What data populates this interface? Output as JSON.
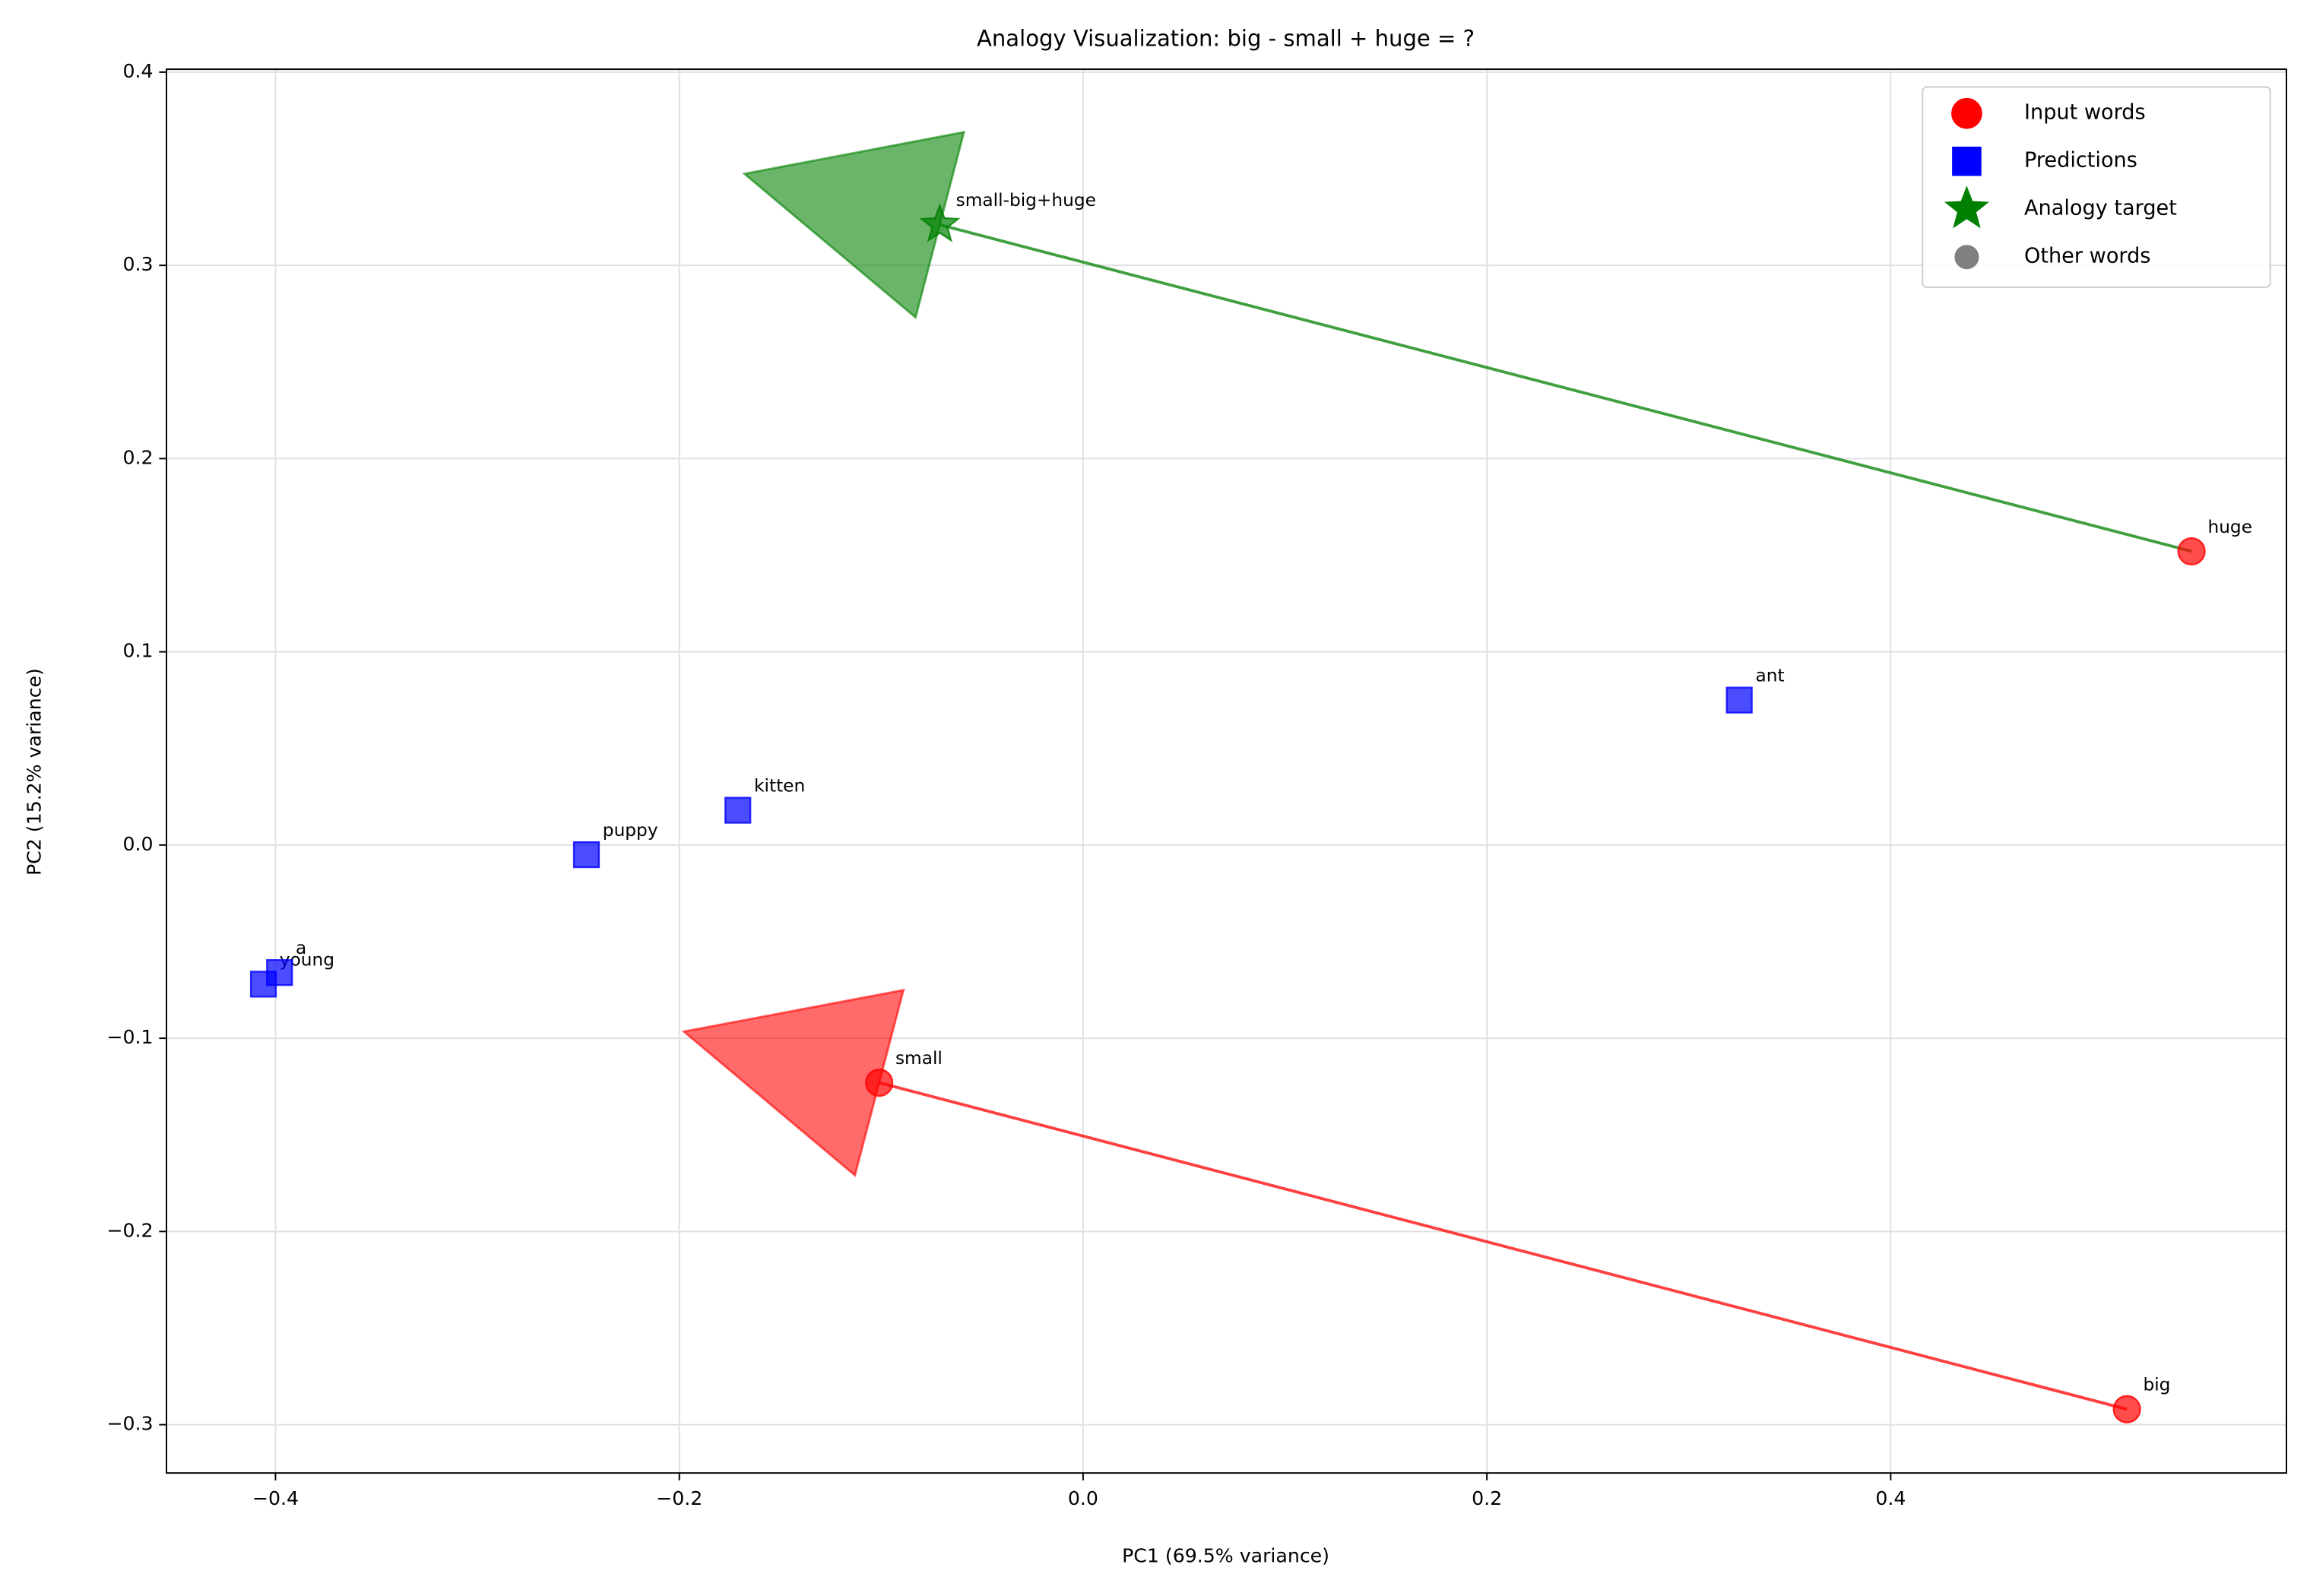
{
  "chart_data": {
    "type": "scatter",
    "title": "Analogy Visualization: big - small + huge = ?",
    "xlabel": "PC1 (69.5% variance)",
    "ylabel": "PC2 (15.2% variance)",
    "xlim": [
      -0.454,
      0.596
    ],
    "ylim": [
      -0.325,
      0.4015
    ],
    "xticks": [
      {
        "value": -0.4,
        "label": "−0.4"
      },
      {
        "value": -0.2,
        "label": "−0.2"
      },
      {
        "value": 0,
        "label": "0.0"
      },
      {
        "value": 0.2,
        "label": "0.2"
      },
      {
        "value": 0.4,
        "label": "0.4"
      }
    ],
    "yticks": [
      {
        "value": -0.3,
        "label": "−0.3"
      },
      {
        "value": -0.2,
        "label": "−0.2"
      },
      {
        "value": -0.1,
        "label": "−0.1"
      },
      {
        "value": 0,
        "label": "0.0"
      },
      {
        "value": 0.1,
        "label": "0.1"
      },
      {
        "value": 0.2,
        "label": "0.2"
      },
      {
        "value": 0.3,
        "label": "0.3"
      },
      {
        "value": 0.4,
        "label": "0.4"
      }
    ],
    "grid": true,
    "legend": "upper right",
    "series": [
      {
        "name": "Input words",
        "color": "red",
        "marker": "circle",
        "x": [
          -0.101,
          0.517,
          0.549
        ],
        "y": [
          -0.123,
          -0.292,
          0.152
        ],
        "labels": [
          "small",
          "big",
          "huge"
        ]
      },
      {
        "name": "Predictions",
        "color": "blue",
        "marker": "square",
        "x": [
          0.325,
          -0.171,
          -0.246,
          -0.406,
          -0.398
        ],
        "y": [
          0.075,
          0.018,
          -0.005,
          -0.072,
          -0.066
        ],
        "labels": [
          "ant",
          "kitten",
          "puppy",
          "young",
          "a"
        ]
      },
      {
        "name": "Analogy target",
        "color": "green",
        "marker": "star",
        "x": [
          -0.071
        ],
        "y": [
          0.321
        ],
        "labels": [
          "small-big+huge"
        ]
      },
      {
        "name": "Other words",
        "color": "gray",
        "marker": "circle",
        "x": [],
        "y": [],
        "labels": []
      }
    ]
  }
}
